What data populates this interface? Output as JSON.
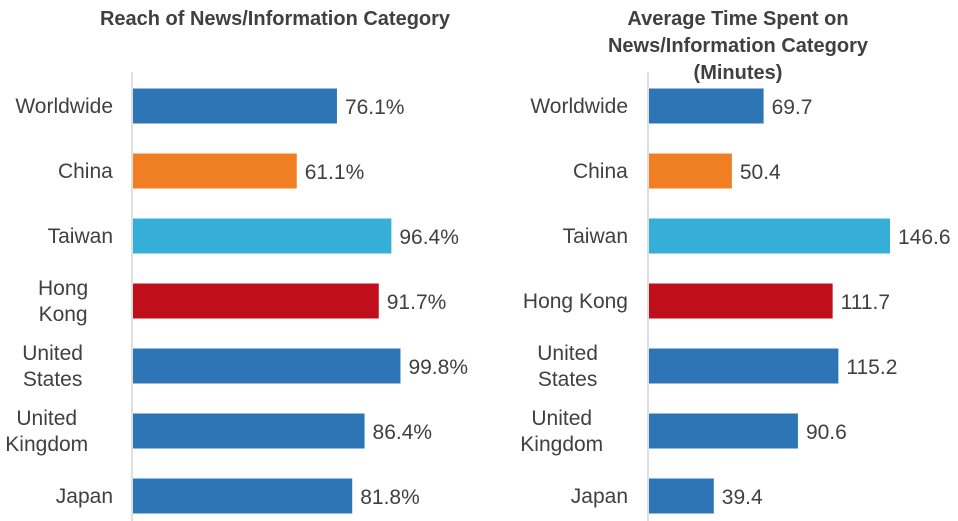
{
  "chart_data": [
    {
      "type": "bar",
      "orientation": "horizontal",
      "title": [
        "Reach of News/Information Category"
      ],
      "categories": [
        [
          "Worldwide"
        ],
        [
          "China"
        ],
        [
          "Taiwan"
        ],
        [
          "Hong",
          "Kong"
        ],
        [
          "United",
          "States"
        ],
        [
          "United",
          "Kingdom"
        ],
        [
          "Japan"
        ]
      ],
      "values": [
        76.1,
        61.1,
        96.4,
        91.7,
        99.8,
        86.4,
        81.8
      ],
      "labels": [
        "76.1%",
        "61.1%",
        "96.4%",
        "91.7%",
        "99.8%",
        "86.4%",
        "81.8%"
      ],
      "colors": [
        "#2e75b6",
        "#f07e23",
        "#35afd7",
        "#c00f1b",
        "#2e75b6",
        "#2e75b6",
        "#2e75b6"
      ],
      "xlim": [
        0,
        100
      ],
      "xlabel": "",
      "ylabel": "",
      "grid": false
    },
    {
      "type": "bar",
      "orientation": "horizontal",
      "title": [
        "Average Time Spent on",
        "News/Information Category",
        "(Minutes)"
      ],
      "categories": [
        [
          "Worldwide"
        ],
        [
          "China"
        ],
        [
          "Taiwan"
        ],
        [
          "Hong Kong"
        ],
        [
          "United",
          "States"
        ],
        [
          "United",
          "Kingdom"
        ],
        [
          "Japan"
        ]
      ],
      "values": [
        69.7,
        50.4,
        146.6,
        111.7,
        115.2,
        90.6,
        39.4
      ],
      "labels": [
        "69.7",
        "50.4",
        "146.6",
        "111.7",
        "115.2",
        "90.6",
        "39.4"
      ],
      "colors": [
        "#2e75b6",
        "#f07e23",
        "#35afd7",
        "#c00f1b",
        "#2e75b6",
        "#2e75b6",
        "#2e75b6"
      ],
      "xlim": [
        0,
        146.6
      ],
      "xlabel": "",
      "ylabel": "",
      "grid": false
    }
  ]
}
